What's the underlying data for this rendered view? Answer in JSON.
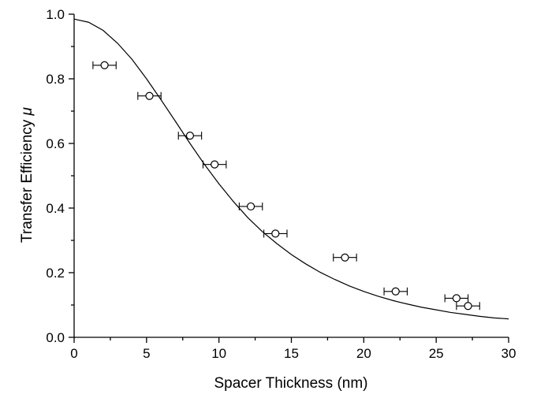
{
  "chart_data": {
    "type": "scatter",
    "xlabel": "Spacer Thickness (nm)",
    "ylabel_text": "Transfer Efficiency ",
    "ylabel_symbol": "μ",
    "xlim": [
      0,
      30
    ],
    "ylim": [
      0,
      1.0
    ],
    "x_ticks": [
      "0",
      "5",
      "10",
      "15",
      "20",
      "25",
      "30"
    ],
    "y_ticks": [
      "0.0",
      "0.2",
      "0.4",
      "0.6",
      "0.8",
      "1.0"
    ],
    "grid": false,
    "series": [
      {
        "points": [
          {
            "x": 2.1,
            "y": 0.842,
            "xerr": 0.8
          },
          {
            "x": 5.2,
            "y": 0.747,
            "xerr": 0.8
          },
          {
            "x": 8.0,
            "y": 0.624,
            "xerr": 0.8
          },
          {
            "x": 9.7,
            "y": 0.535,
            "xerr": 0.8
          },
          {
            "x": 12.2,
            "y": 0.405,
            "xerr": 0.8
          },
          {
            "x": 13.9,
            "y": 0.321,
            "xerr": 0.8
          },
          {
            "x": 18.7,
            "y": 0.247,
            "xerr": 0.8
          },
          {
            "x": 22.2,
            "y": 0.142,
            "xerr": 0.8
          },
          {
            "x": 26.4,
            "y": 0.121,
            "xerr": 0.8
          },
          {
            "x": 27.2,
            "y": 0.097,
            "xerr": 0.8
          }
        ]
      }
    ],
    "fit_curve": {
      "style": "solid line",
      "x": [
        0,
        1,
        2,
        3,
        4,
        5,
        6,
        7,
        8,
        9,
        10,
        11,
        12,
        13,
        14,
        15,
        16,
        17,
        18,
        19,
        20,
        21,
        22,
        23,
        24,
        25,
        26,
        27,
        28,
        29,
        30
      ],
      "y": [
        0.985,
        0.975,
        0.95,
        0.91,
        0.86,
        0.8,
        0.735,
        0.668,
        0.6,
        0.535,
        0.475,
        0.42,
        0.37,
        0.327,
        0.29,
        0.256,
        0.227,
        0.201,
        0.179,
        0.159,
        0.142,
        0.127,
        0.114,
        0.103,
        0.093,
        0.085,
        0.077,
        0.071,
        0.065,
        0.06,
        0.057
      ]
    }
  }
}
